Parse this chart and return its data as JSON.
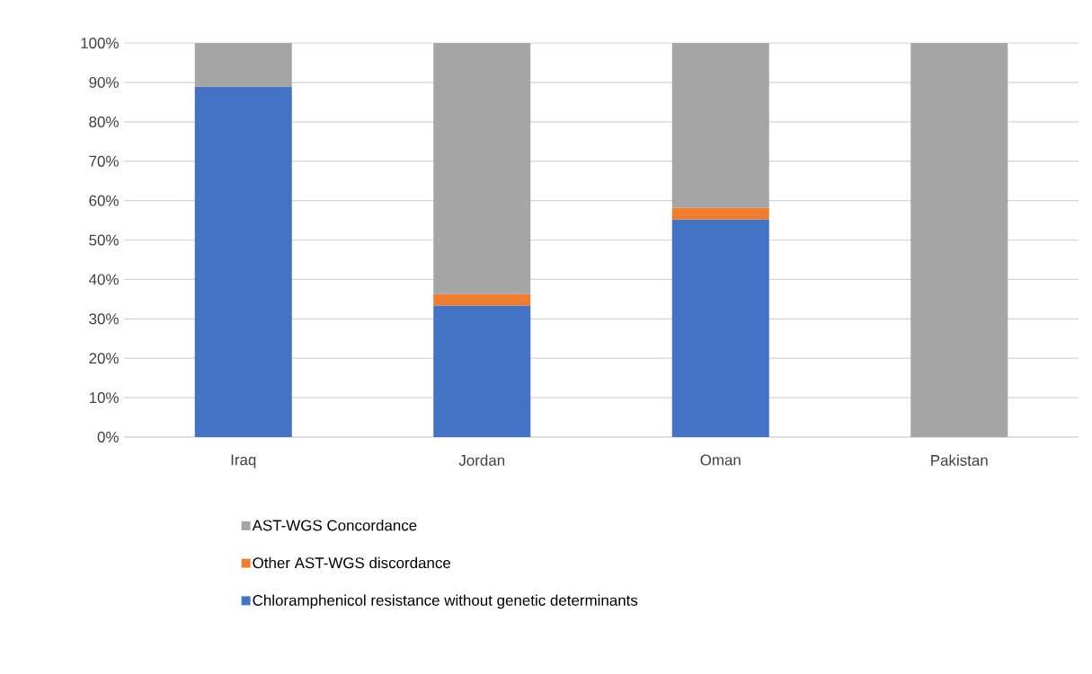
{
  "chart_data": {
    "type": "bar",
    "stacked": true,
    "categories": [
      "Iraq",
      "Jordan",
      "Oman",
      "Pakistan"
    ],
    "series": [
      {
        "name": "Chloramphenicol resistance without genetic determinants",
        "color": "#4472c4",
        "values": [
          88.9,
          33.3,
          55.2,
          0
        ]
      },
      {
        "name": "Other AST-WGS discordance",
        "color": "#ed7d31",
        "values": [
          0,
          3.0,
          3.0,
          0
        ]
      },
      {
        "name": "AST-WGS Concordance",
        "color": "#a5a5a5",
        "values": [
          11.1,
          63.7,
          41.8,
          100
        ]
      }
    ],
    "ylim": [
      0,
      100
    ],
    "yticks": [
      {
        "value": 0,
        "label": "0%"
      },
      {
        "value": 10,
        "label": "10%"
      },
      {
        "value": 20,
        "label": "20%"
      },
      {
        "value": 30,
        "label": "30%"
      },
      {
        "value": 40,
        "label": "40%"
      },
      {
        "value": 50,
        "label": "50%"
      },
      {
        "value": 60,
        "label": "60%"
      },
      {
        "value": 70,
        "label": "70%"
      },
      {
        "value": 80,
        "label": "80%"
      },
      {
        "value": 90,
        "label": "90%"
      },
      {
        "value": 100,
        "label": "100%"
      }
    ],
    "grid": "y",
    "legend": "bottom"
  }
}
